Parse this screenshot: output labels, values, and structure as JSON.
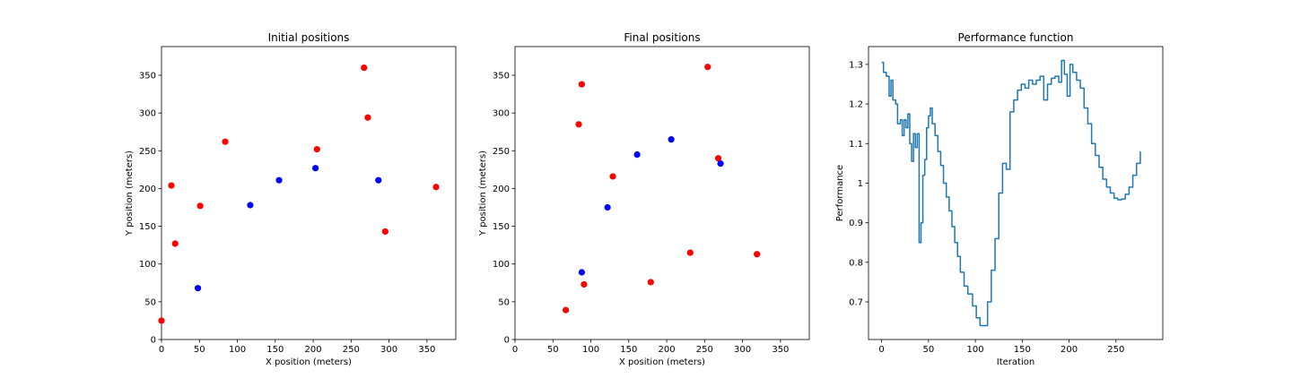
{
  "colors": {
    "red": "#ff0000",
    "blue": "#0000ff",
    "line": "#1f77b4"
  },
  "chart_data": [
    {
      "type": "scatter",
      "title": "Initial positions",
      "xlabel": "X position (meters)",
      "ylabel": "Y position (meters)",
      "xlim": [
        0,
        388
      ],
      "ylim": [
        0,
        388
      ],
      "xticks": [
        0,
        50,
        100,
        150,
        200,
        250,
        300,
        350
      ],
      "yticks": [
        0,
        50,
        100,
        150,
        200,
        250,
        300,
        350
      ],
      "grid": false,
      "series": [
        {
          "color": "red",
          "points": [
            [
              0,
              25
            ],
            [
              13,
              204
            ],
            [
              18,
              127
            ],
            [
              51,
              177
            ],
            [
              84,
              262
            ],
            [
              205,
              252
            ],
            [
              267,
              360
            ],
            [
              272,
              294
            ],
            [
              295,
              143
            ],
            [
              362,
              202
            ]
          ]
        },
        {
          "color": "blue",
          "points": [
            [
              48,
              68
            ],
            [
              117,
              178
            ],
            [
              155,
              211
            ],
            [
              203,
              227
            ],
            [
              286,
              211
            ]
          ]
        }
      ]
    },
    {
      "type": "scatter",
      "title": "Final positions",
      "xlabel": "X position (meters)",
      "ylabel": "Y position (meters)",
      "xlim": [
        0,
        388
      ],
      "ylim": [
        0,
        388
      ],
      "xticks": [
        0,
        50,
        100,
        150,
        200,
        250,
        300,
        350
      ],
      "yticks": [
        0,
        50,
        100,
        150,
        200,
        250,
        300,
        350
      ],
      "grid": false,
      "series": [
        {
          "color": "red",
          "points": [
            [
              67,
              39
            ],
            [
              84,
              285
            ],
            [
              88,
              338
            ],
            [
              91,
              73
            ],
            [
              129,
              216
            ],
            [
              179,
              76
            ],
            [
              231,
              115
            ],
            [
              254,
              361
            ],
            [
              268,
              240
            ],
            [
              319,
              113
            ]
          ]
        },
        {
          "color": "blue",
          "points": [
            [
              88,
              89
            ],
            [
              122,
              175
            ],
            [
              161,
              245
            ],
            [
              206,
              265
            ],
            [
              271,
              233
            ]
          ]
        }
      ]
    },
    {
      "type": "line",
      "title": "Performance function",
      "xlabel": "Iteration",
      "ylabel": "Performance",
      "xlim": [
        -14,
        300
      ],
      "ylim": [
        0.605,
        1.345
      ],
      "xticks": [
        0,
        50,
        100,
        150,
        200,
        250
      ],
      "yticks": [
        0.7,
        0.8,
        0.9,
        1.0,
        1.1,
        1.2,
        1.3
      ],
      "grid": false,
      "series": [
        {
          "color": "line",
          "points": [
            [
              0,
              1.305
            ],
            [
              2,
              1.28
            ],
            [
              5,
              1.27
            ],
            [
              8,
              1.22
            ],
            [
              10,
              1.26
            ],
            [
              12,
              1.21
            ],
            [
              15,
              1.2
            ],
            [
              17,
              1.15
            ],
            [
              20,
              1.16
            ],
            [
              22,
              1.12
            ],
            [
              24,
              1.16
            ],
            [
              26,
              1.14
            ],
            [
              28,
              1.175
            ],
            [
              30,
              1.1
            ],
            [
              32,
              1.055
            ],
            [
              34,
              1.125
            ],
            [
              36,
              1.09
            ],
            [
              38,
              1.125
            ],
            [
              40,
              0.85
            ],
            [
              42,
              0.9
            ],
            [
              44,
              1.02
            ],
            [
              46,
              1.06
            ],
            [
              48,
              1.14
            ],
            [
              50,
              1.17
            ],
            [
              52,
              1.19
            ],
            [
              54,
              1.15
            ],
            [
              57,
              1.12
            ],
            [
              60,
              1.08
            ],
            [
              63,
              1.045
            ],
            [
              66,
              1.0
            ],
            [
              69,
              0.965
            ],
            [
              72,
              0.93
            ],
            [
              75,
              0.89
            ],
            [
              78,
              0.85
            ],
            [
              81,
              0.815
            ],
            [
              84,
              0.775
            ],
            [
              88,
              0.74
            ],
            [
              92,
              0.72
            ],
            [
              97,
              0.69
            ],
            [
              101,
              0.66
            ],
            [
              105,
              0.64
            ],
            [
              109,
              0.64
            ],
            [
              113,
              0.7
            ],
            [
              117,
              0.78
            ],
            [
              121,
              0.86
            ],
            [
              125,
              0.975
            ],
            [
              129,
              1.05
            ],
            [
              133,
              1.035
            ],
            [
              137,
              1.18
            ],
            [
              141,
              1.21
            ],
            [
              145,
              1.235
            ],
            [
              149,
              1.25
            ],
            [
              153,
              1.24
            ],
            [
              157,
              1.26
            ],
            [
              161,
              1.25
            ],
            [
              165,
              1.26
            ],
            [
              169,
              1.27
            ],
            [
              173,
              1.21
            ],
            [
              177,
              1.25
            ],
            [
              181,
              1.265
            ],
            [
              185,
              1.27
            ],
            [
              189,
              1.255
            ],
            [
              192,
              1.31
            ],
            [
              195,
              1.275
            ],
            [
              198,
              1.22
            ],
            [
              201,
              1.3
            ],
            [
              204,
              1.28
            ],
            [
              208,
              1.26
            ],
            [
              212,
              1.24
            ],
            [
              216,
              1.19
            ],
            [
              220,
              1.15
            ],
            [
              224,
              1.1
            ],
            [
              228,
              1.07
            ],
            [
              232,
              1.04
            ],
            [
              236,
              1.01
            ],
            [
              240,
              0.99
            ],
            [
              244,
              0.975
            ],
            [
              248,
              0.962
            ],
            [
              252,
              0.958
            ],
            [
              256,
              0.96
            ],
            [
              260,
              0.972
            ],
            [
              264,
              0.99
            ],
            [
              268,
              1.02
            ],
            [
              272,
              1.05
            ],
            [
              276,
              1.08
            ]
          ]
        }
      ]
    }
  ]
}
